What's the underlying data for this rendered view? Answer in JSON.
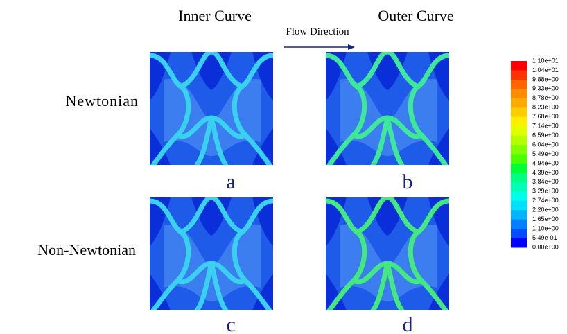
{
  "columns": [
    "Inner Curve",
    "Outer Curve"
  ],
  "flow_direction": "Flow Direction",
  "rows": [
    "Newtonian",
    "Non-Newtonian"
  ],
  "panels": [
    "a",
    "b",
    "c",
    "d"
  ],
  "colorbar": {
    "labels": [
      "1.10e+01",
      "1.04e+01",
      "9.88e+00",
      "9.33e+00",
      "8.78e+00",
      "8.23e+00",
      "7.68e+00",
      "7.14e+00",
      "6.59e+00",
      "6.04e+00",
      "5.49e+00",
      "4.94e+00",
      "4.39e+00",
      "3.84e+00",
      "3.29e+00",
      "2.74e+00",
      "2.20e+00",
      "1.65e+00",
      "1.10e+00",
      "5.49e-01",
      "0.00e+00"
    ],
    "colors": [
      "#ff0000",
      "#ff3300",
      "#ff6600",
      "#ff8c00",
      "#ffaa00",
      "#ffcc00",
      "#ffee00",
      "#e0ff00",
      "#b4ff00",
      "#7fff00",
      "#4cff00",
      "#00ff33",
      "#00ff80",
      "#00ffb4",
      "#00ffe8",
      "#00e0ff",
      "#00b4ff",
      "#0080ff",
      "#004cff",
      "#0000ff"
    ]
  }
}
